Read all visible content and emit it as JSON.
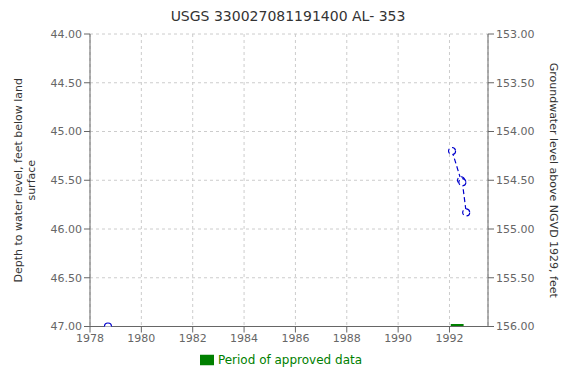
{
  "chart_data": {
    "type": "line",
    "title": "USGS 330027081191400 AL- 353",
    "ylabel": "Depth to water level, feet below land\nsurface",
    "y2label": "Groundwater level above NGVD 1929, feet",
    "xlim": [
      1978.0,
      1993.5
    ],
    "xticks": [
      1978,
      1980,
      1982,
      1984,
      1986,
      1988,
      1990,
      1992
    ],
    "ylim": [
      47.0,
      44.0
    ],
    "yticks": [
      {
        "value": 44.0,
        "label": "44.00"
      },
      {
        "value": 44.5,
        "label": "44.50"
      },
      {
        "value": 45.0,
        "label": "45.00"
      },
      {
        "value": 45.5,
        "label": "45.50"
      },
      {
        "value": 46.0,
        "label": "46.00"
      },
      {
        "value": 46.5,
        "label": "46.50"
      },
      {
        "value": 47.0,
        "label": "47.00"
      }
    ],
    "y2lim": [
      156.0,
      153.0
    ],
    "y2ticks": [
      {
        "value": 156.0,
        "label": "156.00"
      },
      {
        "value": 155.5,
        "label": "155.50"
      },
      {
        "value": 155.0,
        "label": "155.00"
      },
      {
        "value": 154.5,
        "label": "154.50"
      },
      {
        "value": 154.0,
        "label": "154.00"
      },
      {
        "value": 153.5,
        "label": "153.50"
      },
      {
        "value": 153.0,
        "label": "153.00"
      }
    ],
    "grid": true,
    "series": [
      {
        "x": [
          1978.7
        ],
        "values": [
          47.0
        ],
        "color": "#0000CC",
        "marker": "o",
        "line_style": "none"
      },
      {
        "x": [
          1992.1,
          1992.45,
          1992.5,
          1992.65
        ],
        "values": [
          45.2,
          45.5,
          45.52,
          45.83
        ],
        "color": "#0000CC",
        "marker": "o",
        "line_style": "dashed"
      },
      {
        "name": "Period of approved data",
        "x": [
          1992.05,
          1992.55
        ],
        "values": [
          47.0,
          47.0
        ],
        "color": "#008000",
        "marker": "none",
        "line_style": "solid"
      }
    ]
  }
}
